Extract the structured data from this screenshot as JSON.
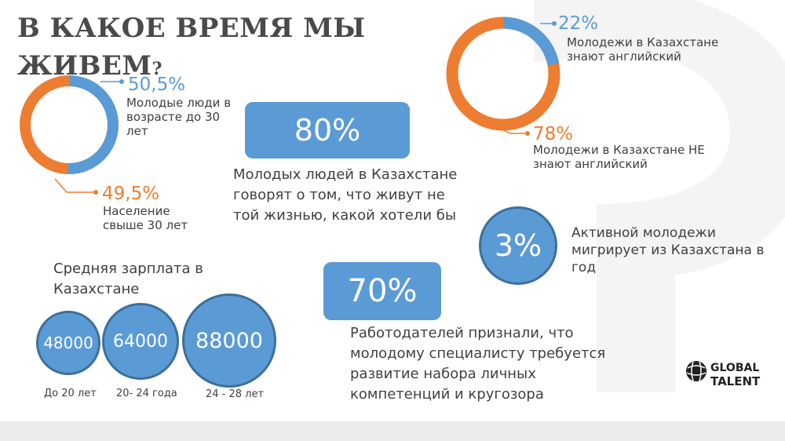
{
  "title": {
    "main": "В КАКОЕ ВРЕМЯ МЫ",
    "line2": "ЖИВЕМ",
    "q": "?"
  },
  "colors": {
    "blue": "#5b9bd5",
    "orange": "#ed7d31",
    "circle_border": "#3e6f9c"
  },
  "donut_age": {
    "young": {
      "pct": "50,5%",
      "value": 50.5,
      "label": "Молодые люди в возрасте до 30 лет"
    },
    "older": {
      "pct": "49,5%",
      "value": 49.5,
      "label": "Население свыше 30 лет"
    }
  },
  "stat80": {
    "value": "80%",
    "text": "Молодых людей в Казахстане говорят о том, что живут не той жизнью, какой хотели бы"
  },
  "donut_english": {
    "know": {
      "pct": "22%",
      "value": 22,
      "label": "Молодежи в Казахстане знают английский"
    },
    "not_know": {
      "pct": "78%",
      "value": 78,
      "label": "Молодежи в Казахстане НЕ знают английский"
    }
  },
  "stat3": {
    "value": "3%",
    "text": "Активной молодежи мигрирует из Казахстана в год"
  },
  "salary": {
    "title": "Средняя зарплата в Казахстане",
    "items": [
      {
        "value": "48000",
        "age": "До 20 лет"
      },
      {
        "value": "64000",
        "age": "20- 24 года"
      },
      {
        "value": "88000",
        "age": "24 - 28 лет"
      }
    ]
  },
  "stat70": {
    "value": "70%",
    "text": "Работодателей признали, что молодому специалисту требуется развитие набора личных компетенций и кругозора"
  },
  "logo": {
    "line1": "GLOBAL",
    "line2": "TALENT"
  }
}
